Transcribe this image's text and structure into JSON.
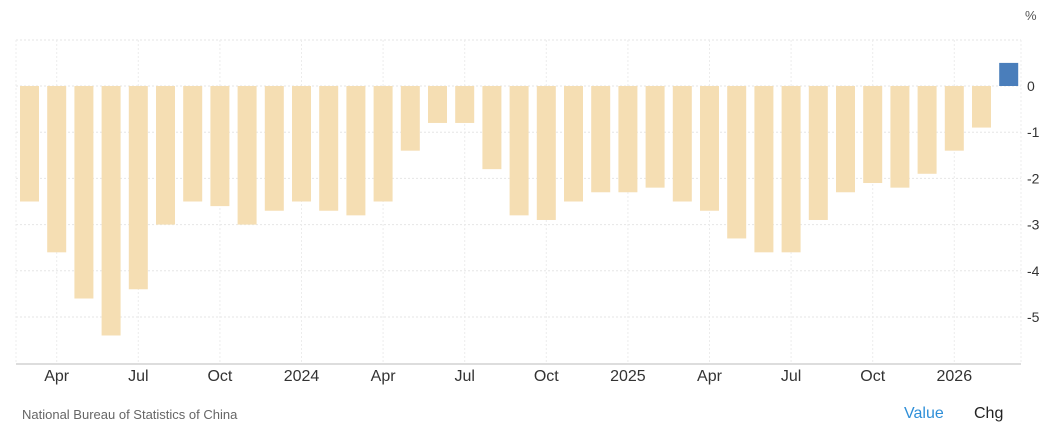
{
  "chart_data": {
    "type": "bar",
    "unit_label": "%",
    "x_tick_labels": [
      "Apr",
      "Jul",
      "Oct",
      "2024",
      "Apr",
      "Jul",
      "Oct",
      "2025",
      "Apr",
      "Jul",
      "Oct",
      "2026"
    ],
    "y_tick_labels": [
      "0",
      "-1",
      "-2",
      "-3",
      "-4",
      "-5"
    ],
    "ylim": [
      -5.9,
      1.0
    ],
    "grid": true,
    "values": [
      -2.5,
      -3.6,
      -4.6,
      -5.4,
      -4.4,
      -3.0,
      -2.5,
      -2.6,
      -3.0,
      -2.7,
      -2.5,
      -2.7,
      -2.8,
      -2.5,
      -1.4,
      -0.8,
      -0.8,
      -1.8,
      -2.8,
      -2.9,
      -2.5,
      -2.3,
      -2.3,
      -2.2,
      -2.5,
      -2.7,
      -3.3,
      -3.6,
      -3.6,
      -2.9,
      -2.3,
      -2.1,
      -2.2,
      -1.9,
      -1.4,
      -0.9,
      0.5
    ],
    "bar_color": "#f5deb3",
    "highlight_color": "#4a7ebb"
  },
  "footer": {
    "source": "National Bureau of Statistics of China",
    "value_toggle": "Value",
    "chg_toggle": "Chg"
  }
}
